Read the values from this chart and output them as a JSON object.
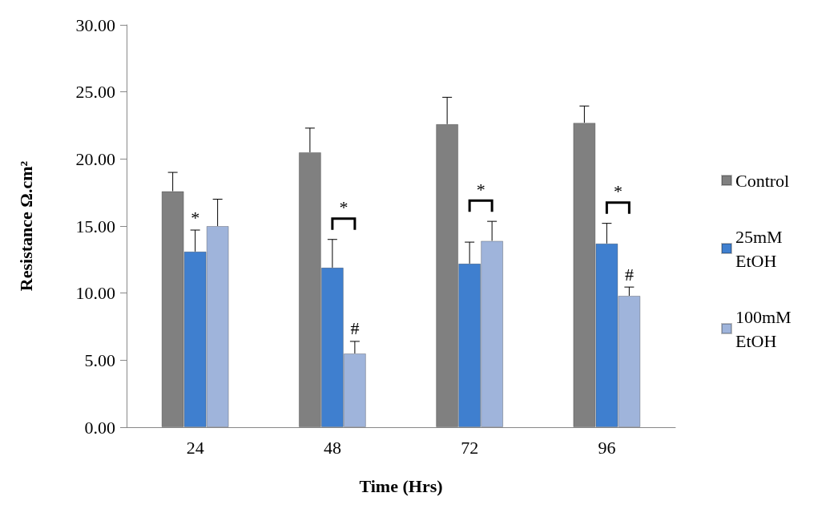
{
  "chart_data": {
    "type": "bar",
    "xlabel": "Time (Hrs)",
    "ylabel": "Resistance Ω.cm²",
    "categories": [
      "24",
      "48",
      "72",
      "96"
    ],
    "series": [
      {
        "name": "Control",
        "color": "#808080",
        "values": [
          17.6,
          20.5,
          22.6,
          22.7
        ],
        "errors": [
          1.4,
          1.8,
          2.0,
          1.25
        ]
      },
      {
        "name": "25mM EtOH",
        "color": "#3f7fcf",
        "values": [
          13.1,
          11.9,
          12.2,
          13.7
        ],
        "errors": [
          1.6,
          2.1,
          1.6,
          1.5
        ]
      },
      {
        "name": "100mM EtOH",
        "color": "#9fb4db",
        "values": [
          15.0,
          5.5,
          13.9,
          9.8
        ],
        "errors": [
          2.0,
          0.9,
          1.45,
          0.65
        ]
      }
    ],
    "ylim": [
      0,
      30
    ],
    "yticks": [
      {
        "value": 0,
        "label": "0.00"
      },
      {
        "value": 5,
        "label": "5.00"
      },
      {
        "value": 10,
        "label": "10.00"
      },
      {
        "value": 15,
        "label": "15.00"
      },
      {
        "value": 20,
        "label": "20.00"
      },
      {
        "value": 25,
        "label": "25.00"
      },
      {
        "value": 30,
        "label": "30.00"
      }
    ],
    "grid": false,
    "legend": "right",
    "annotations": [
      "*",
      "*",
      "#",
      "*",
      "*",
      "#"
    ]
  }
}
